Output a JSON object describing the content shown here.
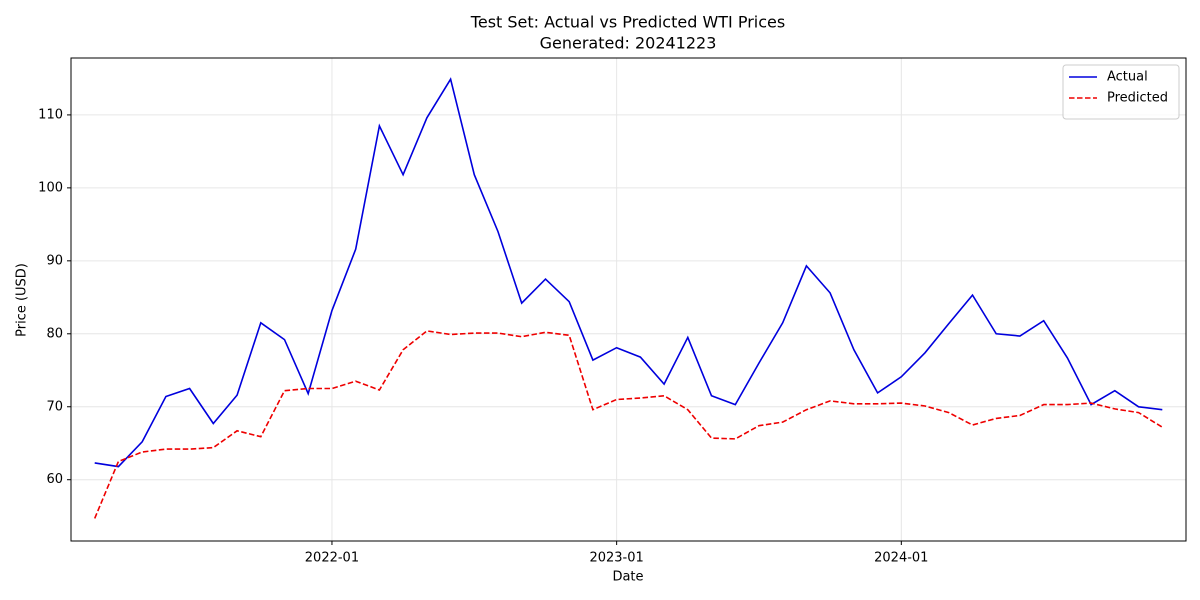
{
  "chart_data": {
    "type": "line",
    "title": "Test Set: Actual vs Predicted WTI Prices",
    "subtitle": "Generated: 20241223",
    "x_label": "Date",
    "y_label": "Price (USD)",
    "x": [
      "2021-03",
      "2021-04",
      "2021-05",
      "2021-06",
      "2021-07",
      "2021-08",
      "2021-09",
      "2021-10",
      "2021-11",
      "2021-12",
      "2022-01",
      "2022-02",
      "2022-03",
      "2022-04",
      "2022-05",
      "2022-06",
      "2022-07",
      "2022-08",
      "2022-09",
      "2022-10",
      "2022-11",
      "2022-12",
      "2023-01",
      "2023-02",
      "2023-03",
      "2023-04",
      "2023-05",
      "2023-06",
      "2023-07",
      "2023-08",
      "2023-09",
      "2023-10",
      "2023-11",
      "2023-12",
      "2024-01",
      "2024-02",
      "2024-03",
      "2024-04",
      "2024-05",
      "2024-06",
      "2024-07",
      "2024-08",
      "2024-09",
      "2024-10",
      "2024-11",
      "2024-12"
    ],
    "series": [
      {
        "name": "Actual",
        "color": "#0000dd",
        "linestyle": "solid",
        "values": [
          62.3,
          61.8,
          65.2,
          71.4,
          72.5,
          67.7,
          71.6,
          81.5,
          79.2,
          71.8,
          83.2,
          91.6,
          108.5,
          101.8,
          109.6,
          114.9,
          101.8,
          94.0,
          84.2,
          87.5,
          84.4,
          76.4,
          78.1,
          76.8,
          73.1,
          79.5,
          71.5,
          70.3,
          76.0,
          81.5,
          89.3,
          85.6,
          77.8,
          71.9,
          74.1,
          77.4,
          81.4,
          85.3,
          80.0,
          79.7,
          81.8,
          76.7,
          70.3,
          72.2,
          70.0,
          69.6
        ]
      },
      {
        "name": "Predicted",
        "color": "#ee0000",
        "linestyle": "dashed",
        "values": [
          54.7,
          62.5,
          63.8,
          64.2,
          64.2,
          64.4,
          66.7,
          65.9,
          72.2,
          72.5,
          72.5,
          73.5,
          72.3,
          77.8,
          80.4,
          79.9,
          80.1,
          80.1,
          79.6,
          80.2,
          79.8,
          69.6,
          71.0,
          71.2,
          71.5,
          69.6,
          65.7,
          65.6,
          67.4,
          67.9,
          69.6,
          70.8,
          70.4,
          70.4,
          70.5,
          70.1,
          69.2,
          67.5,
          68.4,
          68.8,
          70.3,
          70.3,
          70.5,
          69.7,
          69.2,
          67.2
        ]
      }
    ],
    "xlim": [
      "2021-02",
      "2025-01"
    ],
    "xticks": [
      "2022-01",
      "2023-01",
      "2024-01"
    ],
    "ylim": [
      51.6,
      117.8
    ],
    "yticks": [
      60,
      70,
      80,
      90,
      100,
      110
    ],
    "grid": true,
    "legend": "upper right"
  }
}
